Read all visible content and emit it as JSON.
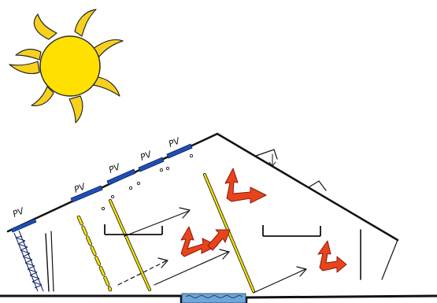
{
  "colors": {
    "sun_fill": "#FFE000",
    "sun_ray": "#F7D11C",
    "sun_outline": "#2A2A2A",
    "pv_panel": "#1F4FB5",
    "roof_line": "#111111",
    "glass_yellow": "#F2E000",
    "heat_arrow_fill": "#E8441C",
    "heat_arrow_outline": "#8A1A0A",
    "water": "#6FA6D8",
    "ground": "#111111"
  },
  "labels": {
    "pv_1": "PV",
    "pv_2": "PV",
    "pv_3": "PV",
    "pv_4": "PV",
    "pv_5": "PV"
  },
  "icons": {
    "sun": "sun-icon",
    "pv_panel": "solar-panel-icon",
    "heat_arrow": "heat-flow-arrow-icon",
    "light_arrow": "sunlight-arrow-icon",
    "water": "water-pond-icon",
    "crane": "lattice-tower-icon"
  }
}
